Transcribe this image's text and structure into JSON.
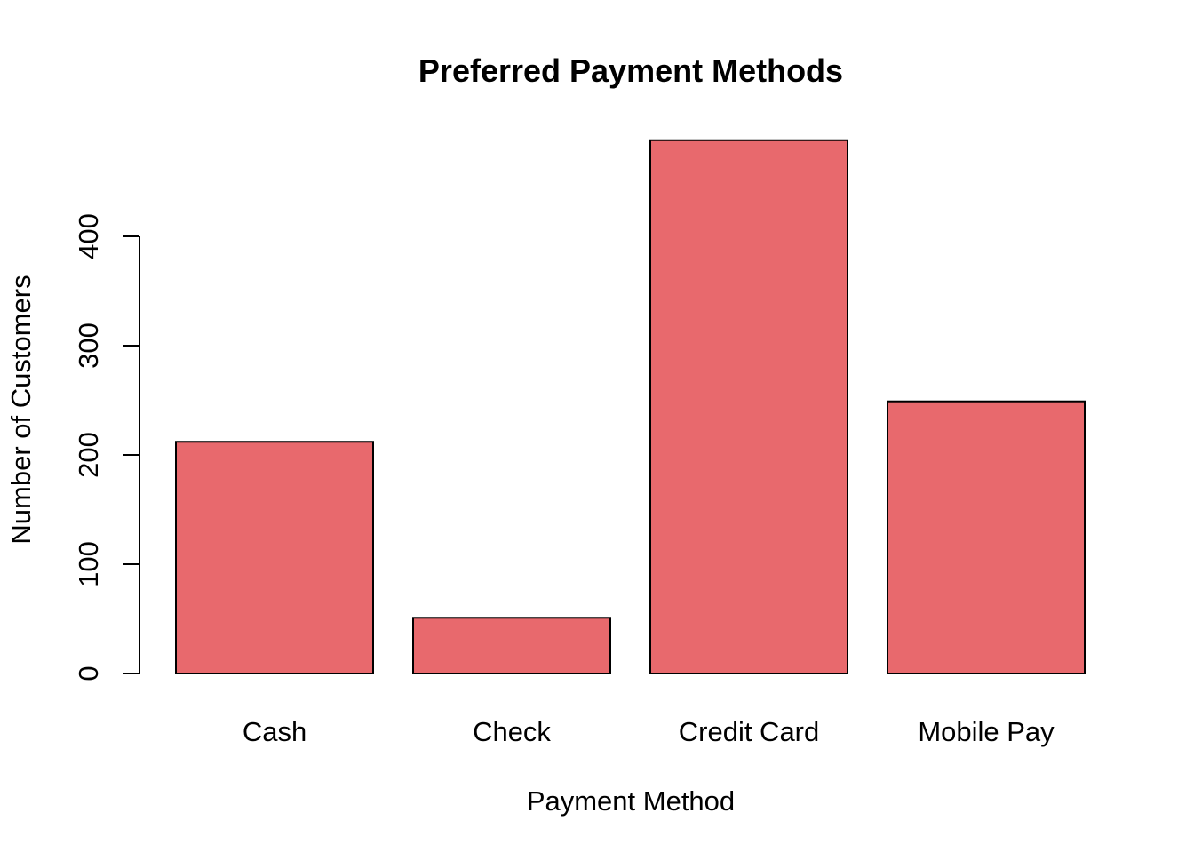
{
  "chart_data": {
    "type": "bar",
    "title": "Preferred Payment Methods",
    "xlabel": "Payment Method",
    "ylabel": "Number of Customers",
    "categories": [
      "Cash",
      "Check",
      "Credit Card",
      "Mobile Pay"
    ],
    "values": [
      212,
      51,
      488,
      249
    ],
    "yticks": [
      0,
      100,
      200,
      300,
      400
    ],
    "ylim": [
      0,
      488
    ],
    "bar_color": "#E8696D",
    "grid": false,
    "legend": "none"
  }
}
